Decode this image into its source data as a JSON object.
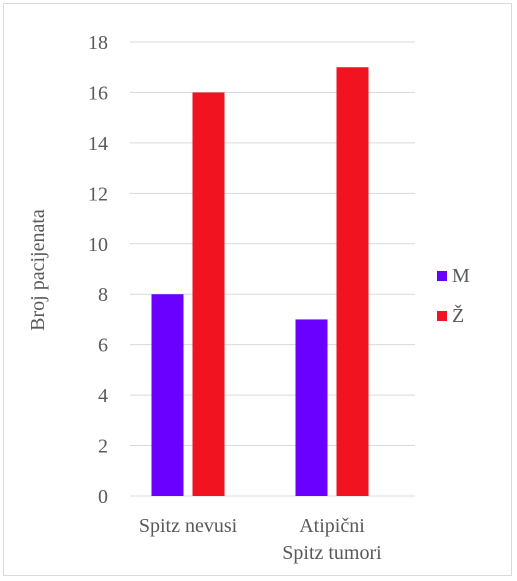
{
  "chart_data": {
    "type": "bar",
    "categories": [
      [
        "Spitz nevusi"
      ],
      [
        "Atipični",
        "Spitz tumori"
      ]
    ],
    "series": [
      {
        "name": "M",
        "values": [
          8,
          7
        ],
        "color": "#6a00ff"
      },
      {
        "name": "Ž",
        "values": [
          16,
          17
        ],
        "color": "#f21321"
      }
    ],
    "ylabel": "Broj pacijenata",
    "ylim": [
      0,
      18
    ],
    "yticks": [
      0,
      2,
      4,
      6,
      8,
      10,
      12,
      14,
      16,
      18
    ],
    "grid": true,
    "legend_position": "right"
  }
}
